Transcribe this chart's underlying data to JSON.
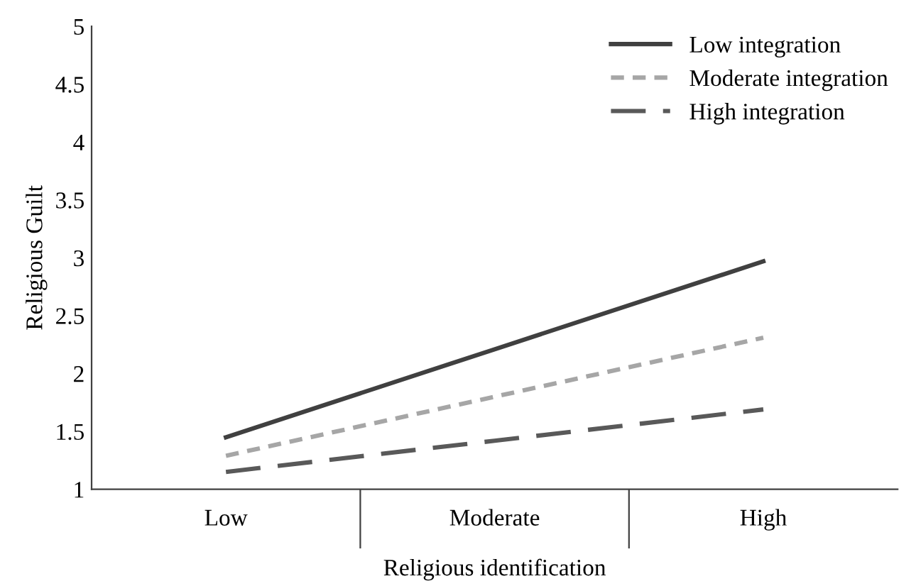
{
  "chart_data": {
    "type": "line",
    "xlabel": "Religious identification",
    "ylabel": "Religious Guilt",
    "categories": [
      "Low",
      "Moderate",
      "High"
    ],
    "series": [
      {
        "name": "Low integration",
        "color": "#404040",
        "line_style": "solid",
        "values": [
          1.45,
          2.21,
          2.97
        ]
      },
      {
        "name": "Moderate integration",
        "color": "#a6a6a6",
        "line_style": "dotted",
        "values": [
          1.29,
          1.8,
          2.31
        ]
      },
      {
        "name": "High integration",
        "color": "#595959",
        "line_style": "dashed",
        "values": [
          1.15,
          1.42,
          1.69
        ]
      }
    ],
    "ylim": [
      1,
      5
    ],
    "yticks": [
      1,
      1.5,
      2,
      2.5,
      3,
      3.5,
      4,
      4.5,
      5
    ],
    "grid": false,
    "legend": "top right",
    "marker": "none"
  }
}
